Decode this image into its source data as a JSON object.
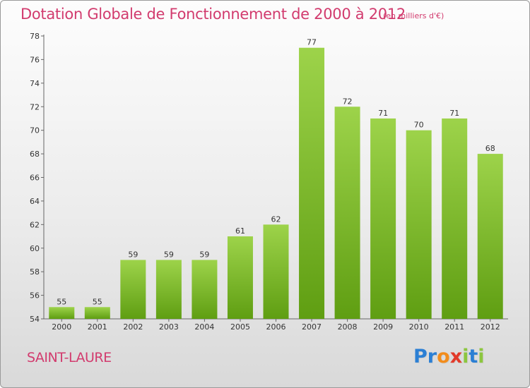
{
  "header": {
    "title": "Dotation Globale de Fonctionnement de 2000 à 2012",
    "unit": "(en milliers d'€)"
  },
  "footer": {
    "town": "SAINT-LAURE",
    "logo_letters": [
      {
        "ch": "P",
        "color": "#2b7fd4"
      },
      {
        "ch": "r",
        "color": "#2b7fd4"
      },
      {
        "ch": "o",
        "color": "#f28c1c"
      },
      {
        "ch": "x",
        "color": "#e23a2a"
      },
      {
        "ch": "i",
        "color": "#8cc63f"
      },
      {
        "ch": "t",
        "color": "#2b7fd4"
      },
      {
        "ch": "i",
        "color": "#8cc63f"
      }
    ]
  },
  "colors": {
    "bar_top": "#9dd34a",
    "bar_bottom": "#5f9e12",
    "accent": "#d23b6e"
  },
  "chart_data": {
    "type": "bar",
    "title": "Dotation Globale de Fonctionnement de 2000 à 2012",
    "xlabel": "",
    "ylabel": "",
    "categories": [
      "2000",
      "2001",
      "2002",
      "2003",
      "2004",
      "2005",
      "2006",
      "2007",
      "2008",
      "2009",
      "2010",
      "2011",
      "2012"
    ],
    "values": [
      55,
      55,
      59,
      59,
      59,
      61,
      62,
      77,
      72,
      71,
      70,
      71,
      68
    ],
    "ylim": [
      54,
      78
    ],
    "yticks": [
      54,
      56,
      58,
      60,
      62,
      64,
      66,
      68,
      70,
      72,
      74,
      76,
      78
    ],
    "grid": false,
    "data_labels": true
  }
}
